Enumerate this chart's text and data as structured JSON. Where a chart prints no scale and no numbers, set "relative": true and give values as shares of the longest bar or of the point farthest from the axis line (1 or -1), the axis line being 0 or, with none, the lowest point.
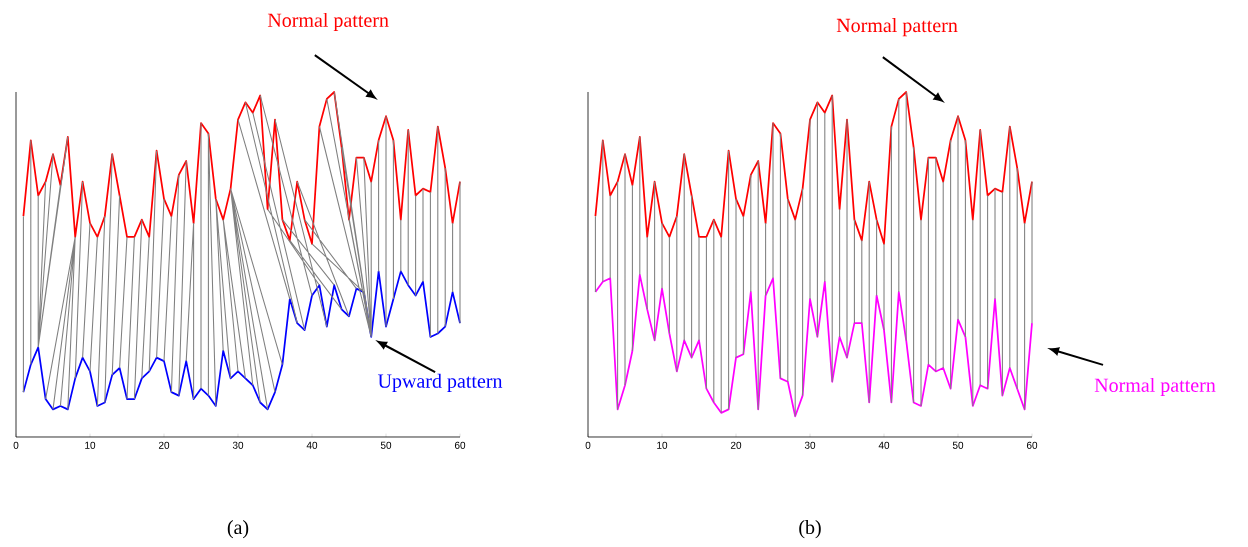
{
  "chart_data": [
    {
      "type": "line",
      "relative": true,
      "x": [
        1,
        2,
        3,
        4,
        5,
        6,
        7,
        8,
        9,
        10,
        11,
        12,
        13,
        14,
        15,
        16,
        17,
        18,
        19,
        20,
        21,
        22,
        23,
        24,
        25,
        26,
        27,
        28,
        29,
        30,
        31,
        32,
        33,
        34,
        35,
        36,
        37,
        38,
        39,
        40,
        41,
        42,
        43,
        44,
        45,
        46,
        47,
        48,
        49,
        50,
        51,
        52,
        53,
        54,
        55,
        56,
        57,
        58,
        59,
        60
      ],
      "xlim": [
        0,
        60
      ],
      "xticks": [
        0,
        10,
        20,
        30,
        40,
        50,
        60
      ],
      "annotations": [
        "(a)"
      ],
      "series": [
        {
          "color": "#808080",
          "x": [
            1,
            1,
            null,
            2,
            2,
            null,
            3,
            3,
            null,
            4,
            3,
            null,
            5,
            3,
            null,
            6,
            3,
            null,
            7,
            3,
            null,
            8,
            4,
            null,
            8,
            5,
            null,
            8,
            6,
            null,
            8,
            7,
            null,
            9,
            8,
            null,
            10,
            9,
            null,
            11,
            10,
            null,
            12,
            11,
            null,
            13,
            12,
            null,
            14,
            13,
            null,
            15,
            14,
            null,
            16,
            15,
            null,
            17,
            16,
            null,
            18,
            17,
            null,
            19,
            18,
            null,
            20,
            19,
            null,
            21,
            20,
            null,
            22,
            21,
            null,
            23,
            22,
            null,
            24,
            23,
            null,
            24,
            24,
            null,
            25,
            25,
            null,
            26,
            26,
            null,
            26,
            27,
            null,
            27,
            28,
            null,
            27,
            29,
            null,
            28,
            30,
            null,
            28,
            31,
            null,
            29,
            32,
            null,
            29,
            33,
            null,
            29,
            34,
            null,
            29,
            35,
            null,
            29,
            36,
            null,
            30,
            37,
            null,
            31,
            38,
            null,
            32,
            39,
            null,
            33,
            40,
            null,
            34,
            41,
            null,
            35,
            42,
            null,
            36,
            43,
            null,
            37,
            44,
            null,
            38,
            45,
            null,
            39,
            46,
            null,
            40,
            47,
            null,
            41,
            48,
            null,
            42,
            48,
            null,
            43,
            48,
            null,
            44,
            48,
            null,
            45,
            48,
            null,
            46,
            48,
            null,
            47,
            48,
            null,
            48,
            48,
            null,
            49,
            49,
            null,
            50,
            50,
            null,
            51,
            51,
            null,
            52,
            52,
            null,
            53,
            53,
            null,
            54,
            54,
            null,
            55,
            55,
            null,
            56,
            56,
            null,
            57,
            57,
            null,
            58,
            58,
            null,
            59,
            59,
            null,
            60,
            60
          ],
          "values": [
            0.64,
            0.13,
            null,
            0.86,
            0.21,
            null,
            0.7,
            0.26,
            null,
            0.74,
            0.26,
            null,
            0.82,
            0.26,
            null,
            0.73,
            0.26,
            null,
            0.87,
            0.26,
            null,
            0.58,
            0.11,
            null,
            0.58,
            0.08,
            null,
            0.58,
            0.09,
            null,
            0.58,
            0.08,
            null,
            0.74,
            0.17,
            null,
            0.62,
            0.23,
            null,
            0.58,
            0.19,
            null,
            0.64,
            0.09,
            null,
            0.82,
            0.1,
            null,
            0.7,
            0.18,
            null,
            0.58,
            0.2,
            null,
            0.58,
            0.11,
            null,
            0.63,
            0.11,
            null,
            0.58,
            0.17,
            null,
            0.83,
            0.19,
            null,
            0.69,
            0.23,
            null,
            0.64,
            0.22,
            null,
            0.76,
            0.13,
            null,
            0.8,
            0.12,
            null,
            0.62,
            0.22,
            null,
            0.62,
            0.11,
            null,
            0.91,
            0.14,
            null,
            0.88,
            0.12,
            null,
            0.88,
            0.09,
            null,
            0.69,
            0.25,
            null,
            0.69,
            0.17,
            null,
            0.63,
            0.19,
            null,
            0.63,
            0.17,
            null,
            0.72,
            0.15,
            null,
            0.72,
            0.1,
            null,
            0.72,
            0.08,
            null,
            0.72,
            0.13,
            null,
            0.72,
            0.21,
            null,
            0.92,
            0.4,
            null,
            0.97,
            0.33,
            null,
            0.94,
            0.31,
            null,
            0.99,
            0.41,
            null,
            0.66,
            0.44,
            null,
            0.92,
            0.32,
            null,
            0.63,
            0.44,
            null,
            0.57,
            0.37,
            null,
            0.74,
            0.35,
            null,
            0.63,
            0.43,
            null,
            0.56,
            0.42,
            null,
            0.9,
            0.29,
            null,
            0.98,
            0.29,
            null,
            1,
            0.29,
            null,
            0.84,
            0.29,
            null,
            0.63,
            0.29,
            null,
            0.81,
            0.29,
            null,
            0.81,
            0.29,
            null,
            0.74,
            0.29,
            null,
            0.86,
            0.48,
            null,
            0.93,
            0.32,
            null,
            0.86,
            0.4,
            null,
            0.63,
            0.48,
            null,
            0.89,
            0.44,
            null,
            0.7,
            0.41,
            null,
            0.72,
            0.45,
            null,
            0.71,
            0.29,
            null,
            0.9,
            0.3,
            null,
            0.78,
            0.32,
            null,
            0.62,
            0.42,
            null,
            0.74,
            0.33
          ]
        },
        {
          "name": "Normal pattern",
          "color": "#ff0000",
          "values": [
            0.64,
            0.86,
            0.7,
            0.74,
            0.82,
            0.73,
            0.87,
            0.58,
            0.74,
            0.62,
            0.58,
            0.64,
            0.82,
            0.7,
            0.58,
            0.58,
            0.63,
            0.58,
            0.83,
            0.69,
            0.64,
            0.76,
            0.8,
            0.62,
            0.91,
            0.88,
            0.69,
            0.63,
            0.72,
            0.92,
            0.97,
            0.94,
            0.99,
            0.66,
            0.92,
            0.63,
            0.57,
            0.74,
            0.63,
            0.56,
            0.9,
            0.98,
            1,
            0.84,
            0.63,
            0.81,
            0.81,
            0.74,
            0.86,
            0.93,
            0.86,
            0.63,
            0.89,
            0.7,
            0.72,
            0.71,
            0.9,
            0.78,
            0.62,
            0.74
          ]
        },
        {
          "name": "Upward pattern",
          "color": "#0000ff",
          "values": [
            0.13,
            0.21,
            0.26,
            0.11,
            0.08,
            0.09,
            0.08,
            0.17,
            0.23,
            0.19,
            0.09,
            0.1,
            0.18,
            0.2,
            0.11,
            0.11,
            0.17,
            0.19,
            0.23,
            0.22,
            0.13,
            0.12,
            0.22,
            0.11,
            0.14,
            0.12,
            0.09,
            0.25,
            0.17,
            0.19,
            0.17,
            0.15,
            0.1,
            0.08,
            0.13,
            0.21,
            0.4,
            0.33,
            0.31,
            0.41,
            0.44,
            0.32,
            0.44,
            0.37,
            0.35,
            0.43,
            0.42,
            0.29,
            0.48,
            0.32,
            0.4,
            0.48,
            0.44,
            0.41,
            0.45,
            0.29,
            0.3,
            0.32,
            0.42,
            0.33
          ]
        }
      ]
    },
    {
      "type": "line",
      "relative": true,
      "x": [
        1,
        2,
        3,
        4,
        5,
        6,
        7,
        8,
        9,
        10,
        11,
        12,
        13,
        14,
        15,
        16,
        17,
        18,
        19,
        20,
        21,
        22,
        23,
        24,
        25,
        26,
        27,
        28,
        29,
        30,
        31,
        32,
        33,
        34,
        35,
        36,
        37,
        38,
        39,
        40,
        41,
        42,
        43,
        44,
        45,
        46,
        47,
        48,
        49,
        50,
        51,
        52,
        53,
        54,
        55,
        56,
        57,
        58,
        59,
        60
      ],
      "xlim": [
        0,
        60
      ],
      "xticks": [
        0,
        10,
        20,
        30,
        40,
        50,
        60
      ],
      "annotations": [
        "(b)"
      ],
      "series": [
        {
          "color": "#808080",
          "x": [
            1,
            1,
            null,
            2,
            2,
            null,
            3,
            3,
            null,
            4,
            4,
            null,
            5,
            5,
            null,
            6,
            6,
            null,
            7,
            7,
            null,
            8,
            8,
            null,
            9,
            9,
            null,
            10,
            10,
            null,
            11,
            11,
            null,
            12,
            12,
            null,
            13,
            13,
            null,
            14,
            14,
            null,
            15,
            15,
            null,
            16,
            16,
            null,
            17,
            17,
            null,
            18,
            18,
            null,
            19,
            19,
            null,
            20,
            20,
            null,
            21,
            21,
            null,
            22,
            22,
            null,
            23,
            23,
            null,
            24,
            24,
            null,
            25,
            25,
            null,
            26,
            26,
            null,
            27,
            27,
            null,
            28,
            28,
            null,
            29,
            29,
            null,
            30,
            30,
            null,
            31,
            31,
            null,
            32,
            32,
            null,
            33,
            33,
            null,
            34,
            34,
            null,
            35,
            35,
            null,
            36,
            36,
            null,
            37,
            37,
            null,
            38,
            38,
            null,
            39,
            39,
            null,
            40,
            40,
            null,
            41,
            41,
            null,
            42,
            42,
            null,
            43,
            43,
            null,
            44,
            44,
            null,
            45,
            45,
            null,
            46,
            46,
            null,
            47,
            47,
            null,
            48,
            48,
            null,
            49,
            49,
            null,
            50,
            50,
            null,
            51,
            51,
            null,
            52,
            52,
            null,
            53,
            53,
            null,
            54,
            54,
            null,
            55,
            55,
            null,
            56,
            56,
            null,
            57,
            57,
            null,
            58,
            58,
            null,
            59,
            59,
            null,
            60,
            60
          ],
          "values": [
            0.64,
            0.42,
            null,
            0.86,
            0.45,
            null,
            0.7,
            0.46,
            null,
            0.74,
            0.08,
            null,
            0.82,
            0.15,
            null,
            0.73,
            0.25,
            null,
            0.87,
            0.47,
            null,
            0.58,
            0.37,
            null,
            0.74,
            0.28,
            null,
            0.62,
            0.43,
            null,
            0.58,
            0.3,
            null,
            0.64,
            0.19,
            null,
            0.82,
            0.28,
            null,
            0.7,
            0.23,
            null,
            0.58,
            0.28,
            null,
            0.58,
            0.14,
            null,
            0.63,
            0.1,
            null,
            0.58,
            0.07,
            null,
            0.83,
            0.08,
            null,
            0.69,
            0.23,
            null,
            0.64,
            0.24,
            null,
            0.76,
            0.42,
            null,
            0.8,
            0.08,
            null,
            0.62,
            0.41,
            null,
            0.91,
            0.46,
            null,
            0.88,
            0.17,
            null,
            0.69,
            0.16,
            null,
            0.63,
            0.06,
            null,
            0.72,
            0.12,
            null,
            0.92,
            0.4,
            null,
            0.97,
            0.29,
            null,
            0.94,
            0.45,
            null,
            0.99,
            0.16,
            null,
            0.66,
            0.29,
            null,
            0.92,
            0.23,
            null,
            0.63,
            0.33,
            null,
            0.57,
            0.33,
            null,
            0.74,
            0.1,
            null,
            0.63,
            0.41,
            null,
            0.56,
            0.31,
            null,
            0.9,
            0.1,
            null,
            0.98,
            0.42,
            null,
            1,
            0.28,
            null,
            0.84,
            0.1,
            null,
            0.63,
            0.09,
            null,
            0.81,
            0.21,
            null,
            0.81,
            0.19,
            null,
            0.74,
            0.2,
            null,
            0.86,
            0.14,
            null,
            0.93,
            0.34,
            null,
            0.86,
            0.29,
            null,
            0.63,
            0.09,
            null,
            0.89,
            0.15,
            null,
            0.7,
            0.14,
            null,
            0.72,
            0.4,
            null,
            0.71,
            0.12,
            null,
            0.9,
            0.2,
            null,
            0.78,
            0.14,
            null,
            0.62,
            0.08,
            null,
            0.74,
            0.33
          ]
        },
        {
          "name": "Normal pattern",
          "color": "#ff0000",
          "values": [
            0.64,
            0.86,
            0.7,
            0.74,
            0.82,
            0.73,
            0.87,
            0.58,
            0.74,
            0.62,
            0.58,
            0.64,
            0.82,
            0.7,
            0.58,
            0.58,
            0.63,
            0.58,
            0.83,
            0.69,
            0.64,
            0.76,
            0.8,
            0.62,
            0.91,
            0.88,
            0.69,
            0.63,
            0.72,
            0.92,
            0.97,
            0.94,
            0.99,
            0.66,
            0.92,
            0.63,
            0.57,
            0.74,
            0.63,
            0.56,
            0.9,
            0.98,
            1,
            0.84,
            0.63,
            0.81,
            0.81,
            0.74,
            0.86,
            0.93,
            0.86,
            0.63,
            0.89,
            0.7,
            0.72,
            0.71,
            0.9,
            0.78,
            0.62,
            0.74
          ]
        },
        {
          "name": "Normal pattern",
          "color": "#ff00ff",
          "values": [
            0.42,
            0.45,
            0.46,
            0.08,
            0.15,
            0.25,
            0.47,
            0.37,
            0.28,
            0.43,
            0.3,
            0.19,
            0.28,
            0.23,
            0.28,
            0.14,
            0.1,
            0.07,
            0.08,
            0.23,
            0.24,
            0.42,
            0.08,
            0.41,
            0.46,
            0.17,
            0.16,
            0.06,
            0.12,
            0.4,
            0.29,
            0.45,
            0.16,
            0.29,
            0.23,
            0.33,
            0.33,
            0.1,
            0.41,
            0.31,
            0.1,
            0.42,
            0.28,
            0.1,
            0.09,
            0.21,
            0.19,
            0.2,
            0.14,
            0.34,
            0.29,
            0.09,
            0.15,
            0.14,
            0.4,
            0.12,
            0.2,
            0.14,
            0.08,
            0.33
          ]
        }
      ]
    }
  ]
}
